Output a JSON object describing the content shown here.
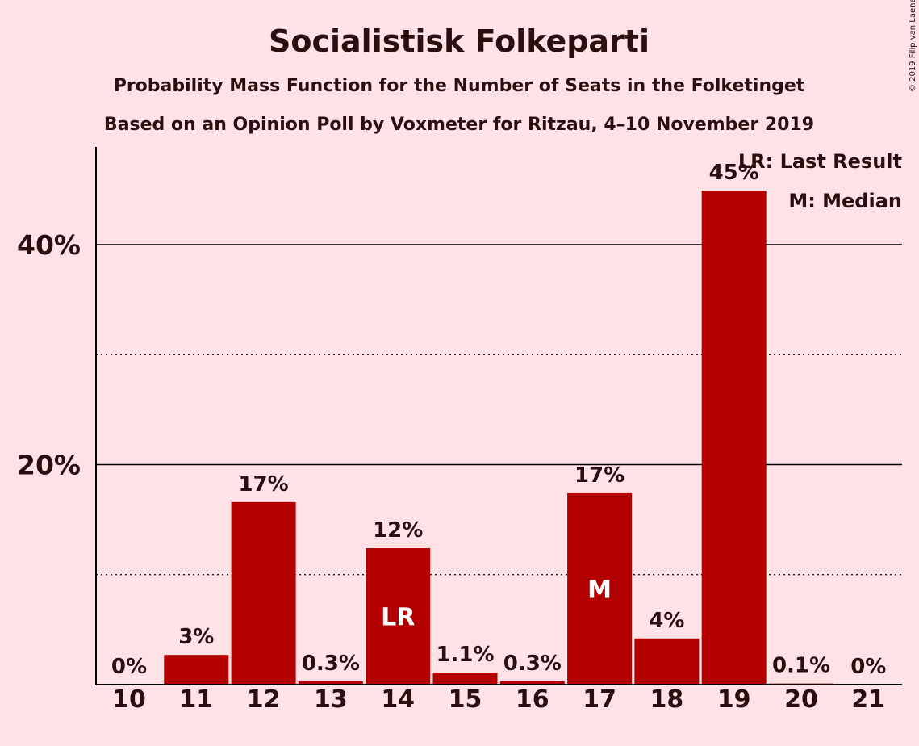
{
  "chart_data": {
    "type": "bar",
    "title": "Socialistisk Folkeparti",
    "subtitle": "Probability Mass Function for the Number of Seats in the Folketinget",
    "subtitle2": "Based on an Opinion Poll by Voxmeter for Ritzau, 4–10 November 2019",
    "copyright": "© 2019 Filip van Laenen",
    "categories": [
      "10",
      "11",
      "12",
      "13",
      "14",
      "15",
      "16",
      "17",
      "18",
      "19",
      "20",
      "21"
    ],
    "values": [
      0,
      2.7,
      16.6,
      0.3,
      12.4,
      1.1,
      0.3,
      17.4,
      4.2,
      44.9,
      0.1,
      0
    ],
    "value_labels": [
      "0%",
      "3%",
      "17%",
      "0.3%",
      "12%",
      "1.1%",
      "0.3%",
      "17%",
      "4%",
      "45%",
      "0.1%",
      "0%"
    ],
    "bar_markers": {
      "14": "LR",
      "17": "M"
    },
    "ylim": [
      0,
      48.9
    ],
    "yticks": [
      {
        "value": 20,
        "label": "20%"
      },
      {
        "value": 40,
        "label": "40%"
      }
    ],
    "minor_gridlines": [
      10,
      30
    ],
    "legend": {
      "placement": "top-right",
      "entries": [
        "LR: Last Result",
        "M: Median"
      ]
    },
    "colors": {
      "bar": "#B30000",
      "background": "#FFE2E6",
      "text": "#2b0e10"
    }
  }
}
